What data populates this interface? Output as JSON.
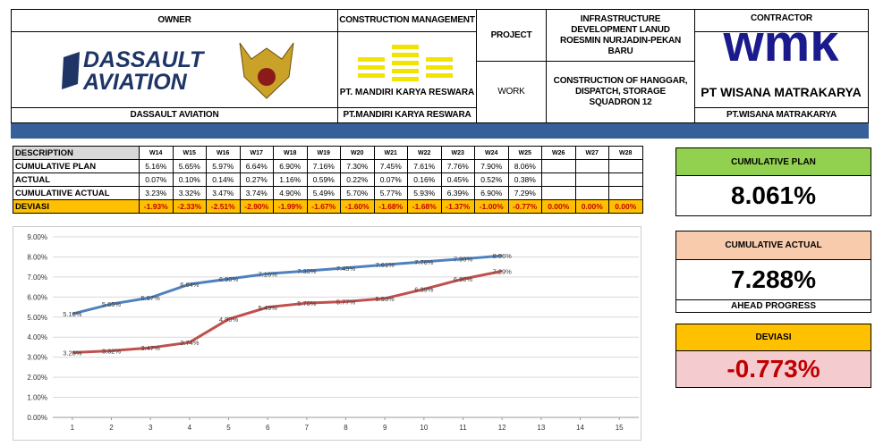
{
  "header": {
    "owner_label": "OWNER",
    "owner_logo": [
      "DASSAULT",
      "AVIATION"
    ],
    "owner_name": "DASSAULT AVIATION",
    "cm_label": "CONSTRUCTION MANAGEMENT",
    "cm_logo": "PT. MANDIRI KARYA RESWARA",
    "cm_name": "PT.MANDIRI KARYA RESWARA",
    "project_label": "PROJECT",
    "project": "INFRASTRUCTURE DEVELOPMENT LANUD ROESMIN NURJADIN-PEKAN BARU",
    "work_label": "WORK",
    "work": "CONSTRUCTION OF HANGGAR, DISPATCH, STORAGE SQUADRON 12",
    "contractor_label": "CONTRACTOR",
    "contractor_logo": "wmk",
    "contractor_logo_name": "PT WISANA MATRAKARYA",
    "contractor_name": "PT.WISANA MATRAKARYA"
  },
  "table": {
    "header": [
      "DESCRIPTION",
      "W14",
      "W15",
      "W16",
      "W17",
      "W18",
      "W19",
      "W20",
      "W21",
      "W22",
      "W23",
      "W24",
      "W25",
      "W26",
      "W27",
      "W28"
    ],
    "rows": [
      {
        "label": "CUMULATIVE PLAN",
        "cells": [
          "5.16%",
          "5.65%",
          "5.97%",
          "6.64%",
          "6.90%",
          "7.16%",
          "7.30%",
          "7.45%",
          "7.61%",
          "7.76%",
          "7.90%",
          "8.06%"
        ]
      },
      {
        "label": "ACTUAL",
        "cells": [
          "0.07%",
          "0.10%",
          "0.14%",
          "0.27%",
          "1.16%",
          "0.59%",
          "0.22%",
          "0.07%",
          "0.16%",
          "0.45%",
          "0.52%",
          "0.38%"
        ]
      },
      {
        "label": "CUMULATIIVE ACTUAL",
        "cells": [
          "3.23%",
          "3.32%",
          "3.47%",
          "3.74%",
          "4.90%",
          "5.49%",
          "5.70%",
          "5.77%",
          "5.93%",
          "6.39%",
          "6.90%",
          "7.29%"
        ]
      },
      {
        "label": "DEVIASI",
        "cells": [
          "-1.93%",
          "-2.33%",
          "-2.51%",
          "-2.90%",
          "-1.99%",
          "-1.67%",
          "-1.60%",
          "-1.68%",
          "-1.68%",
          "-1.37%",
          "-1.00%",
          "-0.77%",
          "0.00%",
          "0.00%",
          "0.00%"
        ]
      }
    ]
  },
  "chart_data": {
    "type": "line",
    "x": [
      1,
      2,
      3,
      4,
      5,
      6,
      7,
      8,
      9,
      10,
      11,
      12
    ],
    "xlim": [
      0.5,
      15.5
    ],
    "xticks": [
      1,
      2,
      3,
      4,
      5,
      6,
      7,
      8,
      9,
      10,
      11,
      12,
      13,
      14,
      15
    ],
    "ylim": [
      0,
      9
    ],
    "yticks": [
      {
        "value": 0,
        "label": "0.00%"
      },
      {
        "value": 1,
        "label": "1.00%"
      },
      {
        "value": 2,
        "label": "2.00%"
      },
      {
        "value": 3,
        "label": "3.00%"
      },
      {
        "value": 4,
        "label": "4.00%"
      },
      {
        "value": 5,
        "label": "5.00%"
      },
      {
        "value": 6,
        "label": "6.00%"
      },
      {
        "value": 7,
        "label": "7.00%"
      },
      {
        "value": 8,
        "label": "8.00%"
      },
      {
        "value": 9,
        "label": "9.00%"
      }
    ],
    "grid": true,
    "series": [
      {
        "color": "#4f81bd",
        "values": [
          5.16,
          5.65,
          5.97,
          6.64,
          6.9,
          7.16,
          7.3,
          7.45,
          7.61,
          7.76,
          7.9,
          8.06
        ],
        "value_labels": [
          "5.16%",
          "5.65%",
          "5.97%",
          "6.64%",
          "6.90%",
          "7.16%",
          "7.30%",
          "7.45%",
          "7.61%",
          "7.76%",
          "7.90%",
          "8.06%"
        ]
      },
      {
        "color": "#c0504d",
        "values": [
          3.23,
          3.32,
          3.47,
          3.74,
          4.9,
          5.49,
          5.7,
          5.77,
          5.93,
          6.39,
          6.9,
          7.29
        ],
        "value_labels": [
          "3.23%",
          "3.32%",
          "3.47%",
          "3.74%",
          "4.90%",
          "5.49%",
          "5.70%",
          "5.77%",
          "5.93%",
          "6.39%",
          "6.90%",
          "7.29%"
        ]
      }
    ]
  },
  "kpis": {
    "plan_label": "CUMULATIVE PLAN",
    "plan_value": "8.061%",
    "actual_label": "CUMULATIVE ACTUAL",
    "actual_value": "7.288%",
    "actual_note": "AHEAD PROGRESS",
    "dev_label": "DEVIASI",
    "dev_value": "-0.773%"
  }
}
